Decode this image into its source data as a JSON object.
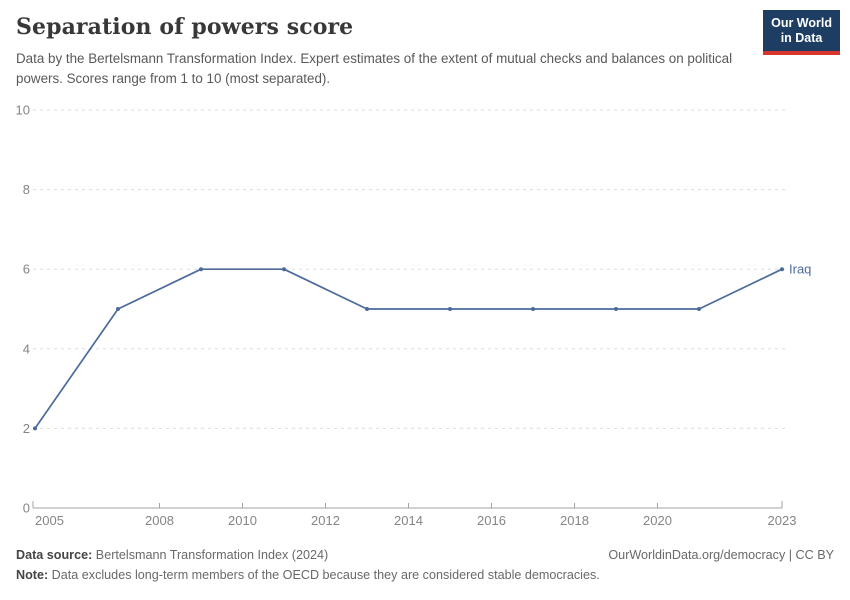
{
  "header": {
    "title": "Separation of powers score",
    "subtitle": "Data by the Bertelsmann Transformation Index. Expert estimates of the extent of mutual checks and balances on political powers. Scores range from 1 to 10 (most separated).",
    "logo": {
      "line1": "Our World",
      "line2": "in Data",
      "bg_color": "#1d3d63",
      "bar_color": "#d7352e"
    }
  },
  "chart_data": {
    "type": "line",
    "title": "Separation of powers score",
    "x": [
      2005,
      2007,
      2009,
      2011,
      2013,
      2015,
      2017,
      2019,
      2021,
      2023
    ],
    "series": [
      {
        "name": "Iraq",
        "values": [
          2,
          5,
          6,
          6,
          5,
          5,
          5,
          5,
          5,
          6
        ],
        "color": "#4c6a9c"
      }
    ],
    "end_label": "Iraq",
    "x_tick_labels": [
      2005,
      2008,
      2010,
      2012,
      2014,
      2016,
      2018,
      2020,
      2023
    ],
    "y_ticks": [
      0,
      2,
      4,
      6,
      8,
      10
    ],
    "xlim": [
      2005,
      2023
    ],
    "ylim": [
      0,
      10
    ],
    "grid": "horizontal-dashed",
    "legend_position": "end-of-line",
    "colors": {
      "gridline": "#dcdcdc",
      "axis": "#a3a3a3",
      "tick_label": "#858585"
    }
  },
  "footer": {
    "source_label": "Data source:",
    "source_value": " Bertelsmann Transformation Index (2024)",
    "rights": "OurWorldinData.org/democracy | CC BY",
    "note_label": "Note:",
    "note_value": " Data excludes long-term members of the OECD because they are considered stable democracies."
  }
}
